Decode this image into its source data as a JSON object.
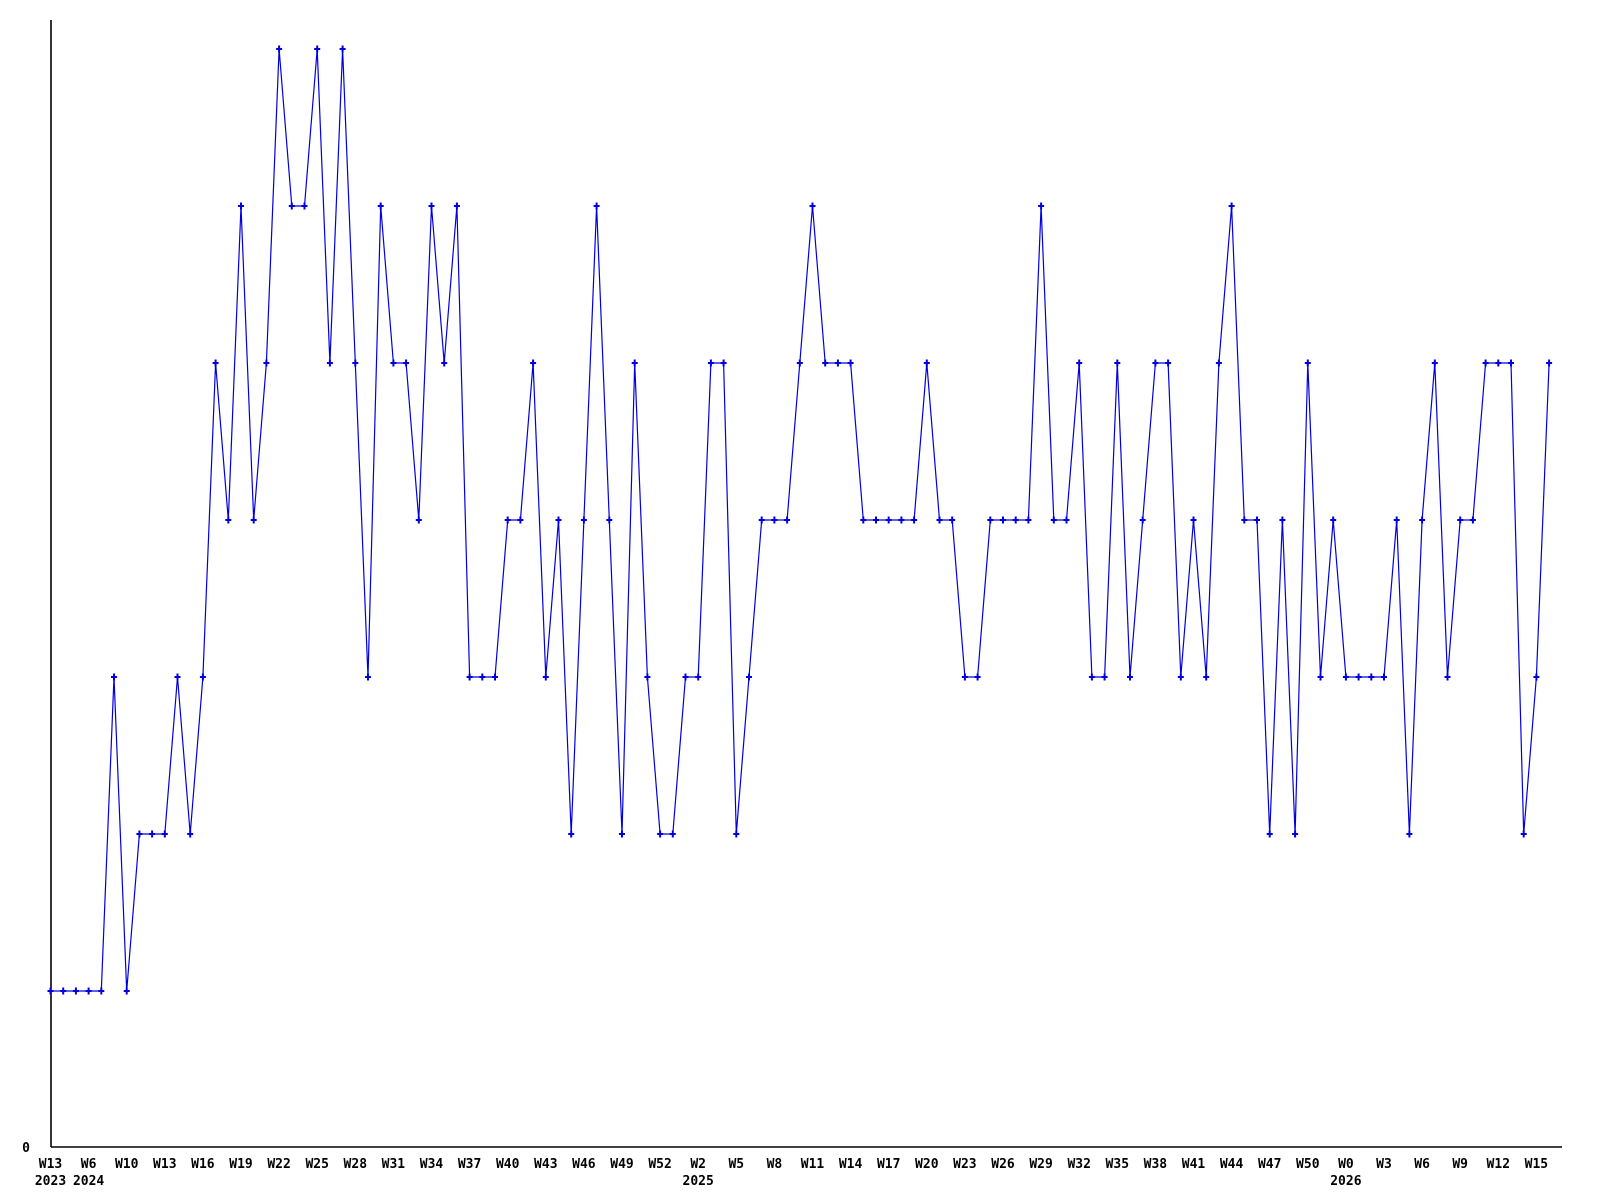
{
  "chart_data": {
    "type": "line",
    "title": "",
    "xlabel": "",
    "ylabel": "",
    "grid": false,
    "legend": null,
    "line_color": "#0000dd",
    "axis_color": "#000000",
    "background_color": "#ffffff",
    "marker": "plus",
    "y_axis": {
      "labels": [
        "0"
      ],
      "min": 0,
      "max_visible": 7
    },
    "tick_every": 3,
    "x_tick_labels": [
      "W13",
      "W6",
      "W10",
      "W13",
      "W16",
      "W19",
      "W22",
      "W25",
      "W28",
      "W31",
      "W34",
      "W37",
      "W40",
      "W43",
      "W46",
      "W49",
      "W52",
      "W2",
      "W5",
      "W8",
      "W11",
      "W14",
      "W17",
      "W20",
      "W23",
      "W26",
      "W29",
      "W32",
      "W35",
      "W38",
      "W41",
      "W44",
      "W47",
      "W50",
      "W0",
      "W3",
      "W6",
      "W9",
      "W12",
      "W15"
    ],
    "year_labels": [
      {
        "text": "2023",
        "tick_index": 0
      },
      {
        "text": "2024",
        "tick_index": 1
      },
      {
        "text": "2025",
        "tick_index": 17
      },
      {
        "text": "2026",
        "tick_index": 34
      }
    ],
    "values": [
      1,
      1,
      1,
      1,
      1,
      3,
      1,
      2,
      2,
      2,
      3,
      2,
      3,
      5,
      4,
      6,
      4,
      5,
      7,
      6,
      6,
      7,
      5,
      7,
      5,
      3,
      6,
      5,
      5,
      4,
      6,
      5,
      6,
      3,
      3,
      3,
      4,
      4,
      5,
      3,
      4,
      2,
      4,
      6,
      4,
      2,
      5,
      3,
      2,
      2,
      3,
      3,
      5,
      5,
      2,
      3,
      4,
      4,
      4,
      5,
      6,
      5,
      5,
      5,
      4,
      4,
      4,
      4,
      4,
      5,
      4,
      4,
      3,
      3,
      4,
      4,
      4,
      4,
      6,
      4,
      4,
      5,
      3,
      3,
      5,
      3,
      4,
      5,
      5,
      3,
      4,
      3,
      5,
      6,
      4,
      4,
      2,
      4,
      2,
      5,
      3,
      4,
      3,
      3,
      3,
      3,
      4,
      2,
      4,
      5,
      3,
      4,
      4,
      5,
      5,
      5,
      2,
      3,
      5
    ]
  }
}
